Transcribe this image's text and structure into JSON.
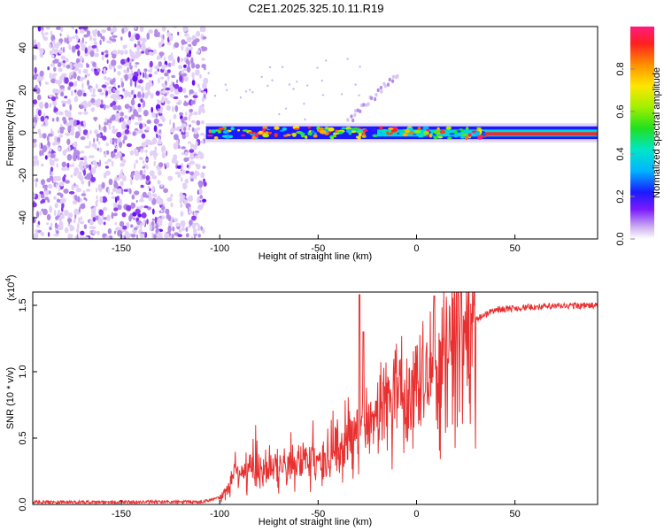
{
  "title": "C2E1.2025.325.10.11.R19",
  "chart_data": [
    {
      "type": "heatmap",
      "xlabel": "Height of straight line (km)",
      "ylabel": "Frequency (Hz)",
      "xlim": [
        -195,
        92
      ],
      "ylim": [
        -50,
        50
      ],
      "x_ticks": [
        -150,
        -100,
        -50,
        0,
        50
      ],
      "x_tick_labels": [
        "-150",
        "-100",
        "-50",
        "0",
        "50"
      ],
      "y_ticks": [
        -40,
        -20,
        0,
        20,
        40
      ],
      "y_tick_labels": [
        "-40",
        "-20",
        "0",
        "20",
        "40"
      ],
      "colorbar": {
        "label": "Normalized spectral amplitude",
        "range": [
          0,
          1
        ],
        "ticks": [
          0.0,
          0.2,
          0.4,
          0.6,
          0.8
        ],
        "tick_labels": [
          "0.0",
          "0.2",
          "0.4",
          "0.6",
          "0.8"
        ]
      },
      "regions": [
        {
          "name": "noise",
          "x_range": [
            -195,
            -107
          ],
          "f_range": [
            -50,
            50
          ],
          "amplitude": [
            0.0,
            0.15
          ]
        },
        {
          "name": "signal-band",
          "x_range": [
            -107,
            92
          ],
          "center_hz": 0,
          "width_hz": 6,
          "amplitude": [
            0.2,
            1.0
          ]
        }
      ]
    },
    {
      "type": "line",
      "xlabel": "Height of straight line (km)",
      "ylabel": "SNR (10 * v/v)",
      "scale_label_prefix": "(x10",
      "scale_label_exp": "4",
      "scale_label_suffix": ")",
      "xlim": [
        -195,
        92
      ],
      "ylim": [
        0,
        1.6
      ],
      "x_ticks": [
        -150,
        -100,
        -50,
        0,
        50
      ],
      "x_tick_labels": [
        "-150",
        "-100",
        "-50",
        "0",
        "50"
      ],
      "y_ticks": [
        0.0,
        0.5,
        1.0,
        1.5
      ],
      "y_tick_labels": [
        "0.0",
        "0.5",
        "1.0",
        "1.5"
      ],
      "color": "#e83030",
      "envelope": {
        "x": [
          -195,
          -110,
          -100,
          -95,
          -92,
          -80,
          -70,
          -60,
          -50,
          -40,
          -30,
          -25,
          -20,
          -10,
          0,
          10,
          20,
          30,
          40,
          60,
          80,
          92
        ],
        "y": [
          0.02,
          0.02,
          0.05,
          0.15,
          0.25,
          0.26,
          0.28,
          0.3,
          0.33,
          0.4,
          0.52,
          0.6,
          0.7,
          0.82,
          0.92,
          1.15,
          1.25,
          1.4,
          1.47,
          1.49,
          1.5,
          1.5
        ]
      },
      "spikes": [
        {
          "x": -29,
          "y": 1.58
        },
        {
          "x": -27,
          "y": 1.3
        },
        {
          "x": 9,
          "y": 1.57
        }
      ]
    }
  ]
}
